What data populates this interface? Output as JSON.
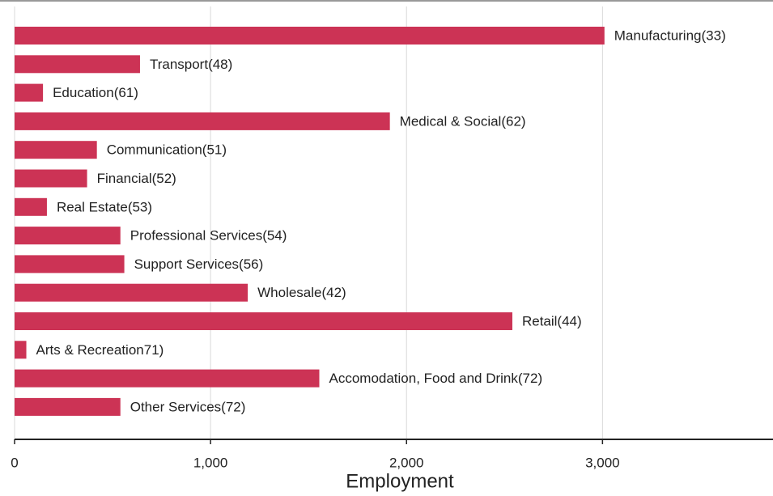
{
  "chart_data": {
    "type": "bar",
    "orientation": "horizontal",
    "x_label": "Employment",
    "categories": [
      "Manufacturing(33)",
      "Transport(48)",
      "Education(61)",
      "Medical & Social(62)",
      "Communication(51)",
      "Financial(52)",
      "Real Estate(53)",
      "Professional Services(54)",
      "Support Services(56)",
      "Wholesale(42)",
      "Retail(44)",
      "Arts & Recreation71)",
      "Accomodation, Food and Drink(72)",
      "Other Services(72)"
    ],
    "values": [
      3010,
      640,
      145,
      1915,
      420,
      370,
      165,
      540,
      560,
      1190,
      2540,
      60,
      1555,
      540
    ],
    "color": "#cc3355",
    "xlim": [
      0,
      3870
    ],
    "xticks": [
      0,
      {
        "value": 1000,
        "label": "1,000"
      },
      {
        "value": 2000,
        "label": "2,000"
      },
      {
        "value": 3000,
        "label": "3,000"
      }
    ],
    "grid": true
  }
}
